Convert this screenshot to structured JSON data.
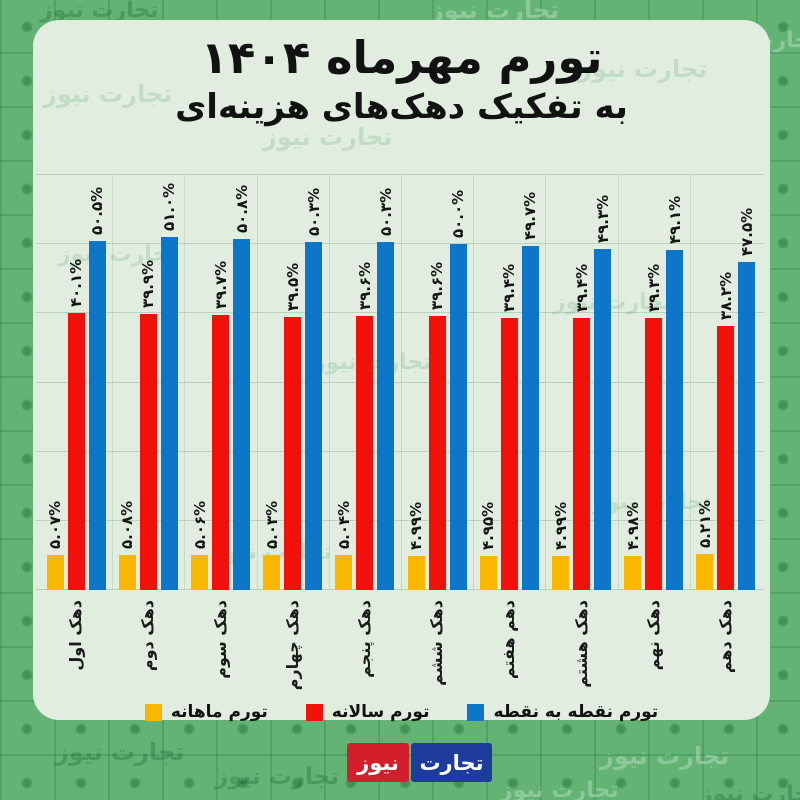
{
  "page": {
    "watermark_text": "تجارت نیوز",
    "background_color": "#62b374",
    "card_color": "#e1eedf"
  },
  "header": {
    "title_line1": "تورم مهرماه ۱۴۰۴",
    "title_line2": "به تفکیک دهک‌های هزینه‌ای"
  },
  "legend": {
    "items": [
      {
        "label": "تورم ماهانه",
        "color": "#f8b800"
      },
      {
        "label": "تورم سالانه",
        "color": "#f2100a"
      },
      {
        "label": "تورم نقطه به نقطه",
        "color": "#0e76c8"
      }
    ]
  },
  "footer_logo": {
    "word1": "تجارت",
    "word1_bg": "#1d3c9c",
    "word2": "نیوز",
    "word2_bg": "#d31f2b"
  },
  "chart_data": {
    "type": "bar",
    "title": "تورم مهرماه ۱۴۰۴ به تفکیک دهک‌های هزینه‌ای",
    "categories": [
      "دهک اول",
      "دهک دوم",
      "دهک سوم",
      "دهک چهارم",
      "دهک پنجم",
      "دهک ششم",
      "دهم هفتم",
      "دهک هشتم",
      "دهک نهم",
      "دهک دهم"
    ],
    "series": [
      {
        "name": "تورم ماهانه",
        "color": "#f8b800",
        "values": [
          5.07,
          5.08,
          5.06,
          5.03,
          5.04,
          4.99,
          4.95,
          4.99,
          4.98,
          5.21
        ],
        "labels": [
          "۵.۰۷%",
          "۵.۰۸%",
          "۵.۰۶%",
          "۵.۰۳%",
          "۵.۰۴%",
          "۴.۹۹%",
          "۴.۹۵%",
          "۴.۹۹%",
          "۴.۹۸%",
          "۵.۲۱%"
        ]
      },
      {
        "name": "تورم سالانه",
        "color": "#f2100a",
        "values": [
          40.1,
          39.9,
          39.7,
          39.5,
          39.6,
          39.6,
          39.4,
          39.4,
          39.3,
          38.2
        ],
        "labels": [
          "۴۰.۱%",
          "۳۹.۹%",
          "۳۹.۷%",
          "۳۹.۵%",
          "۳۹.۶%",
          "۳۹.۶%",
          "۳۹.۴%",
          "۳۹.۴%",
          "۳۹.۳%",
          "۳۸.۲%"
        ]
      },
      {
        "name": "تورم نقطه به نقطه",
        "color": "#0e76c8",
        "values": [
          50.5,
          51.0,
          50.8,
          50.3,
          50.3,
          50.0,
          49.7,
          49.3,
          49.1,
          47.5
        ],
        "labels": [
          "۵۰.۵%",
          "۵۱.۰%",
          "۵۰.۸%",
          "۵۰.۳%",
          "۵۰.۳%",
          "۵۰.۰%",
          "۴۹.۷%",
          "۴۹.۳%",
          "۴۹.۱%",
          "۴۷.۵%"
        ]
      }
    ],
    "ylim": [
      0,
      60
    ],
    "grid": true,
    "legend_position": "bottom",
    "value_label_rotation": -90,
    "category_label_rotation": -90
  }
}
